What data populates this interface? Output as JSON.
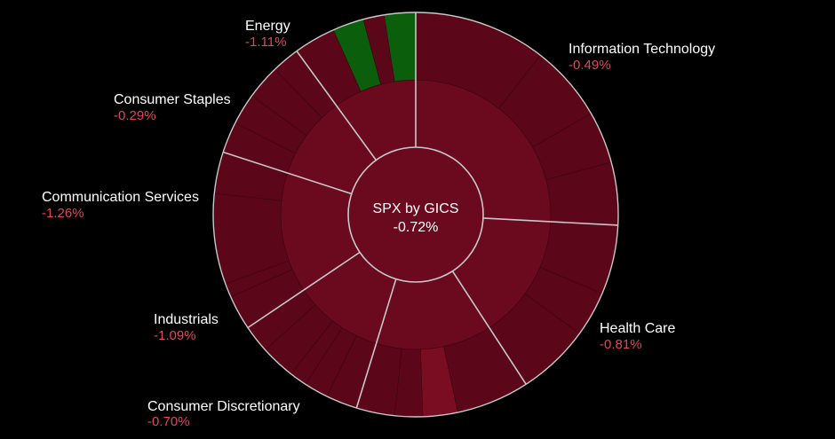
{
  "chart_data": {
    "type": "sunburst",
    "title": "SPX by GICS",
    "total_change": "-0.72%",
    "colors": {
      "background": "#000000",
      "negative": "#6b0a1f",
      "negative_dark": "#5c0719",
      "negative_mid": "#7a0d22",
      "positive": "#0b5e0b",
      "divider": "#c8c8c8",
      "label": "#ffffff",
      "change_text": "#e0475f"
    },
    "sectors": [
      {
        "name": "Information Technology",
        "change": "-0.49%",
        "change_value": -0.49
      },
      {
        "name": "Health Care",
        "change": "-0.81%",
        "change_value": -0.81
      },
      {
        "name": "Consumer Discretionary",
        "change": "-0.70%",
        "change_value": -0.7
      },
      {
        "name": "Industrials",
        "change": "-1.09%",
        "change_value": -1.09
      },
      {
        "name": "Communication Services",
        "change": "-1.26%",
        "change_value": -1.26
      },
      {
        "name": "Consumer Staples",
        "change": "-0.29%",
        "change_value": -0.29
      },
      {
        "name": "Energy",
        "change": "-1.11%",
        "change_value": -1.11
      }
    ]
  }
}
